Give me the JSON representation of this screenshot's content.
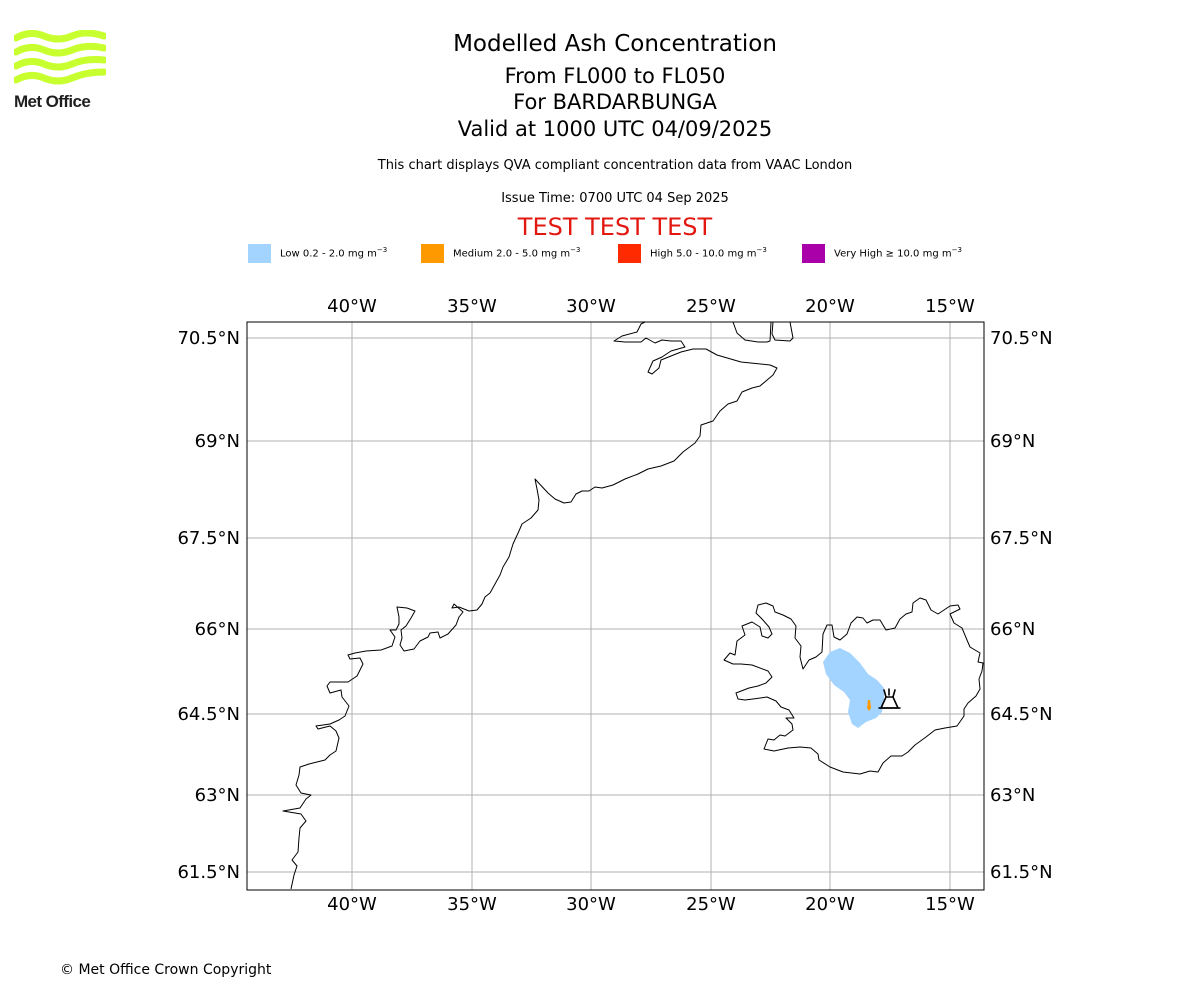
{
  "logo": {
    "text": "Met Office",
    "color": "#c8ff2e"
  },
  "header": {
    "title": "Modelled Ash Concentration",
    "levels": "From FL000 to FL050",
    "volcano": "For BARDARBUNGA",
    "valid": "Valid at 1000 UTC 04/09/2025",
    "description": "This chart displays QVA compliant concentration data from VAAC London",
    "issue_time": "Issue Time: 0700 UTC 04 Sep 2025",
    "test_banner": "TEST TEST TEST",
    "test_color": "#e2170f"
  },
  "legend": [
    {
      "label": "Low 0.2 - 2.0 mg m",
      "color": "#a3d3ff"
    },
    {
      "label": "Medium 2.0 - 5.0 mg m",
      "color": "#ff9900"
    },
    {
      "label": "High 5.0 - 10.0 mg m",
      "color": "#ff2a00"
    },
    {
      "label": "Very High ≥ 10.0 mg m",
      "color": "#aa00aa"
    }
  ],
  "legend_unit_exponent": "−3",
  "map": {
    "lon_ticks": [
      "40°W",
      "35°W",
      "30°W",
      "25°W",
      "20°W",
      "15°W"
    ],
    "lat_ticks": [
      "70.5°N",
      "69°N",
      "67.5°N",
      "66°N",
      "64.5°N",
      "63°N",
      "61.5°N"
    ],
    "lon_values": [
      -40,
      -35,
      -30,
      -25,
      -20,
      -15
    ],
    "lat_values": [
      70.5,
      69,
      67.5,
      66,
      64.5,
      63,
      61.5
    ],
    "grid": true,
    "ash_levels_present": [
      "Low",
      "Medium"
    ],
    "volcano_marker": "volcano-icon"
  },
  "footer": {
    "copyright": "© Met Office Crown Copyright"
  }
}
